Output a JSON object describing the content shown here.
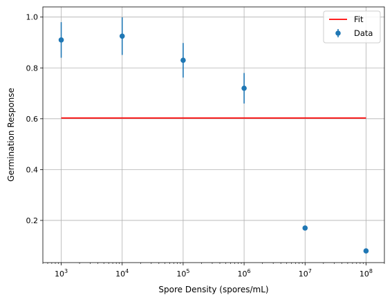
{
  "chart_data": {
    "type": "scatter",
    "title": "",
    "xlabel": "Spore Density (spores/mL)",
    "ylabel": "Germination Response",
    "xscale": "log",
    "xlim": [
      500,
      200000000
    ],
    "ylim": [
      0.034,
      1.04
    ],
    "x_ticks": [
      {
        "value": 1000,
        "base": "10",
        "exp": "3"
      },
      {
        "value": 10000,
        "base": "10",
        "exp": "4"
      },
      {
        "value": 100000,
        "base": "10",
        "exp": "5"
      },
      {
        "value": 1000000,
        "base": "10",
        "exp": "6"
      },
      {
        "value": 10000000,
        "base": "10",
        "exp": "7"
      },
      {
        "value": 100000000,
        "base": "10",
        "exp": "8"
      }
    ],
    "y_ticks": [
      {
        "value": 0.2,
        "label": "0.2"
      },
      {
        "value": 0.4,
        "label": "0.4"
      },
      {
        "value": 0.6,
        "label": "0.6"
      },
      {
        "value": 0.8,
        "label": "0.8"
      },
      {
        "value": 1.0,
        "label": "1.0"
      }
    ],
    "grid": true,
    "legend": {
      "position": "top-right",
      "entries": [
        {
          "label": "Fit",
          "kind": "line",
          "color": "#ff0000"
        },
        {
          "label": "Data",
          "kind": "errorbar-point",
          "color": "#1f77b4"
        }
      ]
    },
    "series": [
      {
        "name": "Data",
        "kind": "errorbar",
        "color": "#1f77b4",
        "x": [
          1000,
          10000,
          100000,
          1000000,
          10000000,
          100000000
        ],
        "y": [
          0.91,
          0.925,
          0.83,
          0.72,
          0.17,
          0.08
        ],
        "yerr": [
          0.07,
          0.074,
          0.068,
          0.06,
          0.0,
          0.0
        ]
      },
      {
        "name": "Fit",
        "kind": "line",
        "color": "#ff0000",
        "x": [
          1000,
          100000000
        ],
        "y": [
          0.603,
          0.603
        ]
      }
    ]
  }
}
